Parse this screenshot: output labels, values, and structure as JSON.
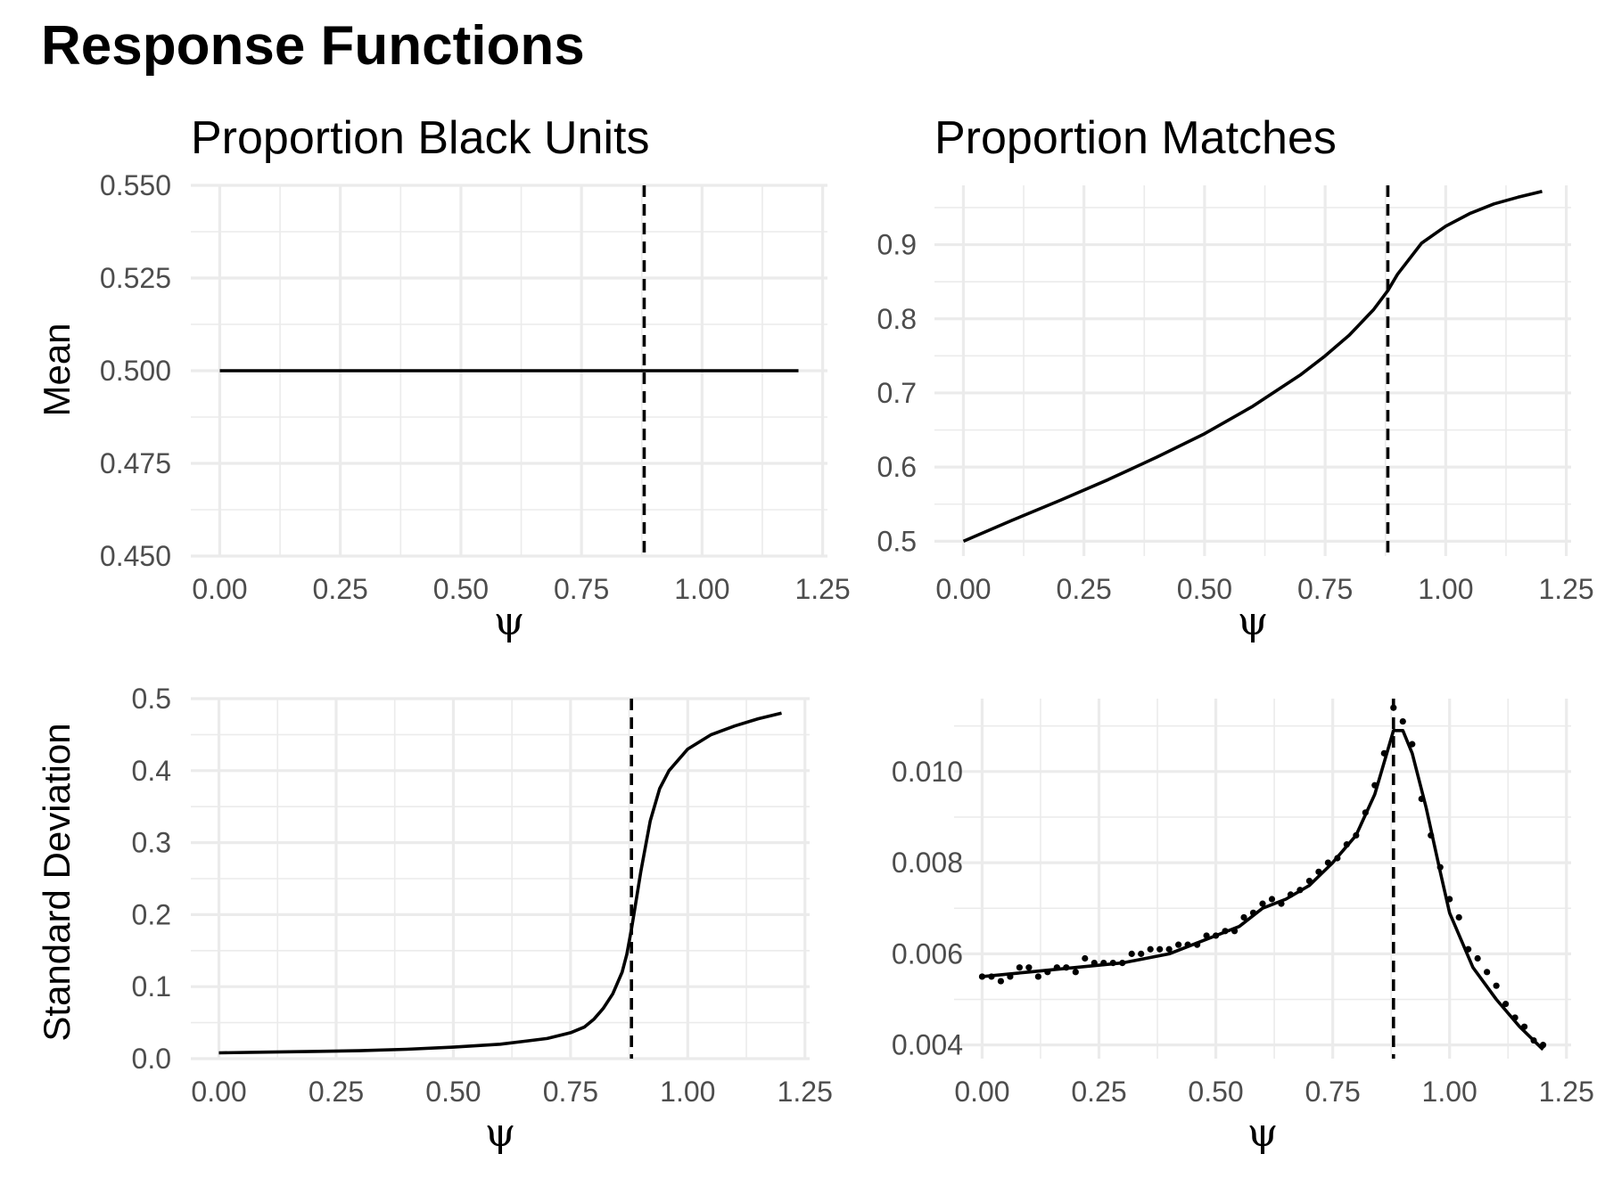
{
  "title": "Response Functions",
  "panel_titles": {
    "left": "Proportion Black Units",
    "right": "Proportion Matches"
  },
  "row_labels": {
    "top": "Mean",
    "bottom": "Standard Deviation"
  },
  "chart_data": [
    {
      "type": "line",
      "title": "Proportion Black Units",
      "xlabel": "ψ",
      "ylabel": "Mean",
      "xlim": [
        -0.06,
        1.26
      ],
      "ylim": [
        0.45,
        0.55
      ],
      "xticks": [
        "0.00",
        "0.25",
        "0.50",
        "0.75",
        "1.00",
        "1.25"
      ],
      "yticks": [
        "0.450",
        "0.475",
        "0.500",
        "0.525",
        "0.550"
      ],
      "vline": 0.88,
      "grid": true,
      "series": [
        {
          "x": [
            0.0,
            1.2
          ],
          "y": [
            0.5,
            0.5
          ]
        }
      ]
    },
    {
      "type": "line",
      "title": "Proportion Matches",
      "xlabel": "ψ",
      "ylabel": "",
      "xlim": [
        -0.06,
        1.26
      ],
      "ylim": [
        0.48,
        0.98
      ],
      "xticks": [
        "0.00",
        "0.25",
        "0.50",
        "0.75",
        "1.00",
        "1.25"
      ],
      "yticks": [
        "0.5",
        "0.6",
        "0.7",
        "0.8",
        "0.9"
      ],
      "vline": 0.88,
      "grid": true,
      "series": [
        {
          "x": [
            0.0,
            0.1,
            0.2,
            0.3,
            0.4,
            0.5,
            0.6,
            0.7,
            0.75,
            0.8,
            0.85,
            0.88,
            0.9,
            0.95,
            1.0,
            1.05,
            1.1,
            1.15,
            1.2
          ],
          "y": [
            0.5,
            0.528,
            0.555,
            0.583,
            0.613,
            0.645,
            0.682,
            0.725,
            0.75,
            0.778,
            0.812,
            0.838,
            0.86,
            0.902,
            0.925,
            0.942,
            0.955,
            0.964,
            0.972
          ]
        }
      ]
    },
    {
      "type": "line",
      "title": "",
      "xlabel": "ψ",
      "ylabel": "Standard Deviation",
      "xlim": [
        -0.06,
        1.26
      ],
      "ylim": [
        0.0,
        0.5
      ],
      "xticks": [
        "0.00",
        "0.25",
        "0.50",
        "0.75",
        "1.00",
        "1.25"
      ],
      "yticks": [
        "0.0",
        "0.1",
        "0.2",
        "0.3",
        "0.4",
        "0.5"
      ],
      "vline": 0.88,
      "grid": true,
      "series": [
        {
          "x": [
            0.0,
            0.1,
            0.2,
            0.3,
            0.4,
            0.5,
            0.6,
            0.65,
            0.7,
            0.75,
            0.78,
            0.8,
            0.82,
            0.84,
            0.86,
            0.87,
            0.88,
            0.89,
            0.9,
            0.92,
            0.94,
            0.96,
            0.98,
            1.0,
            1.05,
            1.1,
            1.15,
            1.2
          ],
          "y": [
            0.008,
            0.009,
            0.01,
            0.011,
            0.013,
            0.016,
            0.02,
            0.024,
            0.028,
            0.036,
            0.044,
            0.055,
            0.07,
            0.09,
            0.12,
            0.145,
            0.18,
            0.22,
            0.26,
            0.33,
            0.375,
            0.4,
            0.415,
            0.43,
            0.45,
            0.462,
            0.472,
            0.48
          ]
        }
      ]
    },
    {
      "type": "line",
      "title": "",
      "xlabel": "ψ",
      "ylabel": "",
      "xlim": [
        -0.06,
        1.26
      ],
      "ylim": [
        0.0037,
        0.0116
      ],
      "xticks": [
        "0.00",
        "0.25",
        "0.50",
        "0.75",
        "1.00",
        "1.25"
      ],
      "yticks": [
        "0.004",
        "0.006",
        "0.008",
        "0.010"
      ],
      "vline": 0.88,
      "grid": true,
      "series": [
        {
          "name": "smooth",
          "x": [
            0.0,
            0.1,
            0.2,
            0.3,
            0.4,
            0.5,
            0.55,
            0.6,
            0.65,
            0.7,
            0.75,
            0.8,
            0.84,
            0.86,
            0.88,
            0.9,
            0.92,
            0.95,
            0.98,
            1.0,
            1.05,
            1.1,
            1.15,
            1.2
          ],
          "y": [
            0.0055,
            0.0056,
            0.0057,
            0.0058,
            0.006,
            0.0064,
            0.0066,
            0.007,
            0.0072,
            0.0075,
            0.008,
            0.0086,
            0.0095,
            0.0102,
            0.0109,
            0.0109,
            0.0104,
            0.0092,
            0.0078,
            0.0069,
            0.0057,
            0.005,
            0.0044,
            0.0039
          ]
        },
        {
          "name": "points",
          "mode": "points",
          "x": [
            0.0,
            0.02,
            0.04,
            0.06,
            0.08,
            0.1,
            0.12,
            0.14,
            0.16,
            0.18,
            0.2,
            0.22,
            0.24,
            0.26,
            0.28,
            0.3,
            0.32,
            0.34,
            0.36,
            0.38,
            0.4,
            0.42,
            0.44,
            0.46,
            0.48,
            0.5,
            0.52,
            0.54,
            0.56,
            0.58,
            0.6,
            0.62,
            0.64,
            0.66,
            0.68,
            0.7,
            0.72,
            0.74,
            0.76,
            0.78,
            0.8,
            0.82,
            0.84,
            0.86,
            0.88,
            0.9,
            0.92,
            0.94,
            0.96,
            0.98,
            1.0,
            1.02,
            1.04,
            1.06,
            1.08,
            1.1,
            1.12,
            1.14,
            1.16,
            1.18,
            1.2
          ],
          "y": [
            0.0055,
            0.0055,
            0.0054,
            0.0055,
            0.0057,
            0.0057,
            0.0055,
            0.0056,
            0.0057,
            0.0057,
            0.0056,
            0.0059,
            0.0058,
            0.0058,
            0.0058,
            0.0058,
            0.006,
            0.006,
            0.0061,
            0.0061,
            0.0061,
            0.0062,
            0.0062,
            0.0062,
            0.0064,
            0.0064,
            0.0065,
            0.0065,
            0.0068,
            0.0069,
            0.0071,
            0.0072,
            0.0071,
            0.0073,
            0.0074,
            0.0076,
            0.0078,
            0.008,
            0.0081,
            0.0084,
            0.0086,
            0.0091,
            0.0097,
            0.0104,
            0.0114,
            0.0111,
            0.0106,
            0.0094,
            0.0086,
            0.0079,
            0.0072,
            0.0068,
            0.0061,
            0.0059,
            0.0056,
            0.0053,
            0.0049,
            0.0046,
            0.0044,
            0.0041,
            0.004
          ]
        }
      ]
    }
  ]
}
